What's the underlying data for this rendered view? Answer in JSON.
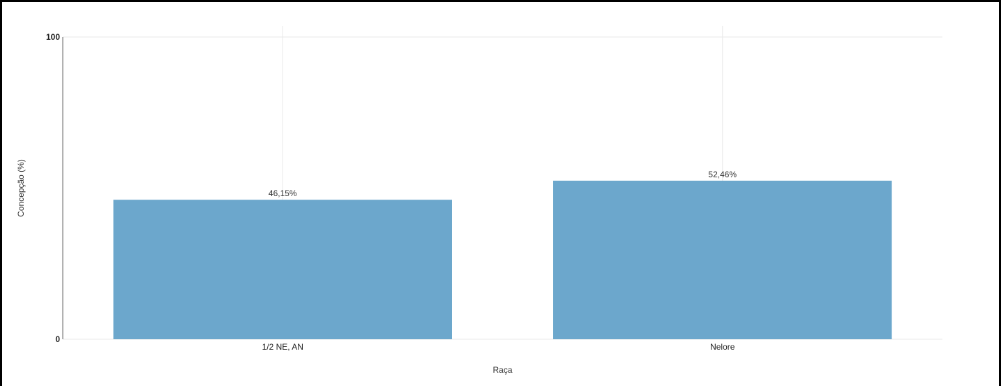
{
  "chart_data": {
    "type": "bar",
    "title": "",
    "xlabel": "Raça",
    "ylabel": "Concepção (%)",
    "categories": [
      "1/2 NE, AN",
      "Nelore"
    ],
    "values": [
      46.15,
      52.46
    ],
    "data_labels": [
      "46,15%",
      "52,46%"
    ],
    "ylim": [
      0,
      100
    ],
    "yticks": [
      0,
      100
    ],
    "ytick_labels": [
      "0",
      "100"
    ],
    "grid": true,
    "legend": "none",
    "colors": {
      "bar": "#6ca7cc",
      "grid": "#e8e8e8",
      "axis": "#666666"
    }
  }
}
